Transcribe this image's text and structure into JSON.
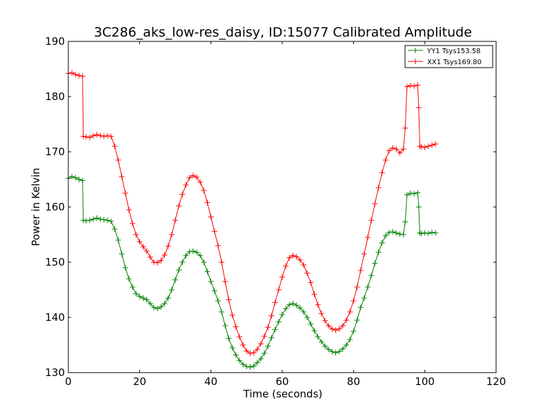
{
  "chart_data": {
    "type": "line",
    "title": "3C286_aks_low-res_daisy, ID:15077 Calibrated Amplitude",
    "xlabel": "Time (seconds)",
    "ylabel": "Power in Kelvin",
    "xlim": [
      0,
      120
    ],
    "ylim": [
      130,
      190
    ],
    "xticks": [
      0,
      20,
      40,
      60,
      80,
      100,
      120
    ],
    "yticks": [
      130,
      140,
      150,
      160,
      170,
      180,
      190
    ],
    "grid": false,
    "legend_position": "top-right",
    "marker": "plus",
    "series": [
      {
        "name": "YY1 Tsys153.58",
        "color": "#008000",
        "points": [
          [
            0,
            165.2
          ],
          [
            1,
            165.5
          ],
          [
            2,
            165.3
          ],
          [
            3,
            165.0
          ],
          [
            4,
            164.8
          ],
          [
            4.2,
            157.6
          ],
          [
            5,
            157.5
          ],
          [
            6,
            157.6
          ],
          [
            7,
            157.8
          ],
          [
            8,
            158.0
          ],
          [
            9,
            157.8
          ],
          [
            10,
            157.7
          ],
          [
            11,
            157.6
          ],
          [
            12,
            157.4
          ],
          [
            13,
            156.0
          ],
          [
            14,
            154.0
          ],
          [
            15,
            151.5
          ],
          [
            16,
            149.0
          ],
          [
            17,
            147.0
          ],
          [
            18,
            145.5
          ],
          [
            19,
            144.3
          ],
          [
            20,
            143.8
          ],
          [
            21,
            143.5
          ],
          [
            22,
            143.2
          ],
          [
            23,
            142.5
          ],
          [
            24,
            141.8
          ],
          [
            25,
            141.6
          ],
          [
            26,
            141.9
          ],
          [
            27,
            142.5
          ],
          [
            28,
            143.5
          ],
          [
            29,
            145.0
          ],
          [
            30,
            146.8
          ],
          [
            31,
            148.6
          ],
          [
            32,
            150.0
          ],
          [
            33,
            151.2
          ],
          [
            34,
            151.9
          ],
          [
            35,
            152.0
          ],
          [
            36,
            151.8
          ],
          [
            37,
            151.2
          ],
          [
            38,
            150.0
          ],
          [
            39,
            148.3
          ],
          [
            40,
            146.5
          ],
          [
            41,
            144.8
          ],
          [
            42,
            143.0
          ],
          [
            43,
            141.0
          ],
          [
            44,
            138.5
          ],
          [
            45,
            136.2
          ],
          [
            46,
            134.5
          ],
          [
            47,
            133.2
          ],
          [
            48,
            132.2
          ],
          [
            49,
            131.5
          ],
          [
            50,
            131.1
          ],
          [
            51,
            131.0
          ],
          [
            52,
            131.2
          ],
          [
            53,
            131.8
          ],
          [
            54,
            132.5
          ],
          [
            55,
            133.5
          ],
          [
            56,
            134.8
          ],
          [
            57,
            136.3
          ],
          [
            58,
            137.8
          ],
          [
            59,
            139.2
          ],
          [
            60,
            140.5
          ],
          [
            61,
            141.6
          ],
          [
            62,
            142.3
          ],
          [
            63,
            142.5
          ],
          [
            64,
            142.2
          ],
          [
            65,
            141.7
          ],
          [
            66,
            141.0
          ],
          [
            67,
            140.0
          ],
          [
            68,
            138.8
          ],
          [
            69,
            137.6
          ],
          [
            70,
            136.5
          ],
          [
            71,
            135.6
          ],
          [
            72,
            134.8
          ],
          [
            73,
            134.2
          ],
          [
            74,
            133.8
          ],
          [
            75,
            133.6
          ],
          [
            76,
            133.8
          ],
          [
            77,
            134.3
          ],
          [
            78,
            135.0
          ],
          [
            79,
            136.0
          ],
          [
            80,
            137.5
          ],
          [
            81,
            139.5
          ],
          [
            82,
            141.8
          ],
          [
            83,
            143.5
          ],
          [
            84,
            145.5
          ],
          [
            85,
            147.6
          ],
          [
            86,
            149.8
          ],
          [
            87,
            151.8
          ],
          [
            88,
            153.5
          ],
          [
            89,
            154.8
          ],
          [
            90,
            155.4
          ],
          [
            91,
            155.5
          ],
          [
            92,
            155.3
          ],
          [
            93,
            155.1
          ],
          [
            94,
            155.0
          ],
          [
            94.5,
            157.3
          ],
          [
            95,
            162.2
          ],
          [
            96,
            162.5
          ],
          [
            97,
            162.4
          ],
          [
            98,
            162.6
          ],
          [
            98.3,
            160.0
          ],
          [
            98.6,
            155.3
          ],
          [
            99,
            155.2
          ],
          [
            100,
            155.3
          ],
          [
            101,
            155.2
          ],
          [
            102,
            155.4
          ],
          [
            103,
            155.3
          ]
        ]
      },
      {
        "name": "XX1 Tsys169.80",
        "color": "#ff0000",
        "points": [
          [
            0,
            184.2
          ],
          [
            1,
            184.3
          ],
          [
            2,
            184.0
          ],
          [
            3,
            183.8
          ],
          [
            4,
            183.7
          ],
          [
            4.2,
            172.8
          ],
          [
            5,
            172.7
          ],
          [
            6,
            172.6
          ],
          [
            7,
            172.9
          ],
          [
            8,
            173.1
          ],
          [
            9,
            172.9
          ],
          [
            10,
            172.8
          ],
          [
            11,
            172.9
          ],
          [
            12,
            172.8
          ],
          [
            13,
            171.0
          ],
          [
            14,
            168.5
          ],
          [
            15,
            165.5
          ],
          [
            16,
            162.5
          ],
          [
            17,
            159.5
          ],
          [
            18,
            157.0
          ],
          [
            19,
            155.0
          ],
          [
            20,
            153.7
          ],
          [
            21,
            152.8
          ],
          [
            22,
            152.0
          ],
          [
            23,
            150.9
          ],
          [
            24,
            150.0
          ],
          [
            25,
            149.9
          ],
          [
            26,
            150.3
          ],
          [
            27,
            151.3
          ],
          [
            28,
            152.9
          ],
          [
            29,
            155.0
          ],
          [
            30,
            157.6
          ],
          [
            31,
            160.2
          ],
          [
            32,
            162.3
          ],
          [
            33,
            164.0
          ],
          [
            34,
            165.3
          ],
          [
            35,
            165.7
          ],
          [
            36,
            165.4
          ],
          [
            37,
            164.5
          ],
          [
            38,
            163.0
          ],
          [
            39,
            160.8
          ],
          [
            40,
            158.2
          ],
          [
            41,
            155.6
          ],
          [
            42,
            153.0
          ],
          [
            43,
            150.0
          ],
          [
            44,
            146.5
          ],
          [
            45,
            143.2
          ],
          [
            46,
            140.4
          ],
          [
            47,
            138.3
          ],
          [
            48,
            136.5
          ],
          [
            49,
            135.0
          ],
          [
            50,
            133.9
          ],
          [
            51,
            133.5
          ],
          [
            52,
            133.6
          ],
          [
            53,
            134.2
          ],
          [
            54,
            135.2
          ],
          [
            55,
            136.6
          ],
          [
            56,
            138.2
          ],
          [
            57,
            140.3
          ],
          [
            58,
            142.7
          ],
          [
            59,
            145.0
          ],
          [
            60,
            147.3
          ],
          [
            61,
            149.3
          ],
          [
            62,
            150.8
          ],
          [
            63,
            151.2
          ],
          [
            64,
            151.0
          ],
          [
            65,
            150.4
          ],
          [
            66,
            149.5
          ],
          [
            67,
            148.0
          ],
          [
            68,
            146.3
          ],
          [
            69,
            144.2
          ],
          [
            70,
            142.3
          ],
          [
            71,
            140.7
          ],
          [
            72,
            139.4
          ],
          [
            73,
            138.5
          ],
          [
            74,
            137.9
          ],
          [
            75,
            137.7
          ],
          [
            76,
            137.9
          ],
          [
            77,
            138.5
          ],
          [
            78,
            139.5
          ],
          [
            79,
            141.0
          ],
          [
            80,
            143.0
          ],
          [
            81,
            145.5
          ],
          [
            82,
            148.5
          ],
          [
            83,
            151.5
          ],
          [
            84,
            154.5
          ],
          [
            85,
            157.6
          ],
          [
            86,
            160.6
          ],
          [
            87,
            163.5
          ],
          [
            88,
            166.2
          ],
          [
            89,
            168.5
          ],
          [
            90,
            170.2
          ],
          [
            91,
            170.7
          ],
          [
            92,
            170.5
          ],
          [
            93,
            169.8
          ],
          [
            94,
            170.5
          ],
          [
            94.5,
            174.3
          ],
          [
            95,
            181.8
          ],
          [
            96,
            182.0
          ],
          [
            97,
            181.9
          ],
          [
            98,
            182.1
          ],
          [
            98.3,
            178.0
          ],
          [
            98.6,
            171.0
          ],
          [
            99,
            170.9
          ],
          [
            100,
            170.8
          ],
          [
            101,
            171.0
          ],
          [
            102,
            171.2
          ],
          [
            103,
            171.4
          ]
        ]
      }
    ]
  }
}
